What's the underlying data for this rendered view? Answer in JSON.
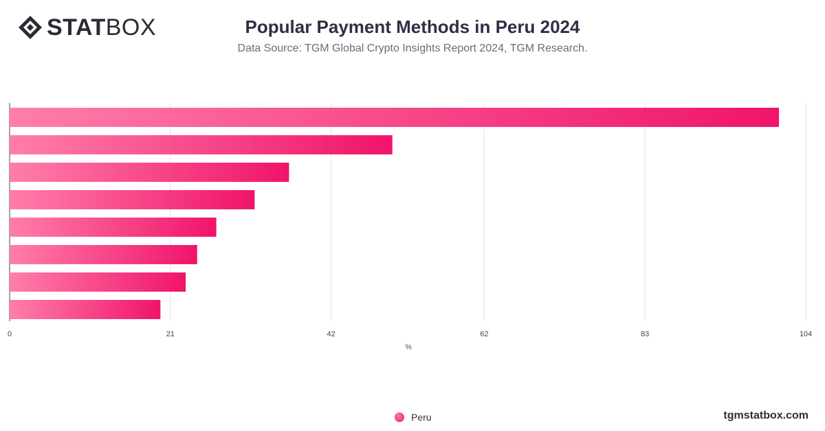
{
  "brand": {
    "logo_bold": "STAT",
    "logo_light": "BOX",
    "logo_icon": "diamond-logo-icon"
  },
  "header": {
    "title": "Popular Payment Methods in Peru 2024",
    "subtitle": "Data Source: TGM Global Crypto Insights Report 2024, TGM Research."
  },
  "legend": {
    "label": "Peru"
  },
  "footer": {
    "site": "tgmstatbox.com"
  },
  "colors": {
    "bar_start": "#ff7eab",
    "bar_end": "#f0146a",
    "grid": "#e3e3e6",
    "axis": "#444444"
  },
  "chart_data": {
    "type": "bar",
    "orientation": "horizontal",
    "categories": [
      "",
      "",
      "",
      "",
      "",
      "",
      "",
      ""
    ],
    "series": [
      {
        "name": "Peru",
        "values": [
          100.5,
          50,
          36.5,
          32,
          27,
          24.5,
          23,
          19.7
        ]
      }
    ],
    "xlabel": "%",
    "xlim": [
      0,
      104
    ],
    "xticks": [
      0,
      21,
      42,
      62,
      83,
      104
    ],
    "grid": true,
    "legend_position": "bottom-center"
  }
}
